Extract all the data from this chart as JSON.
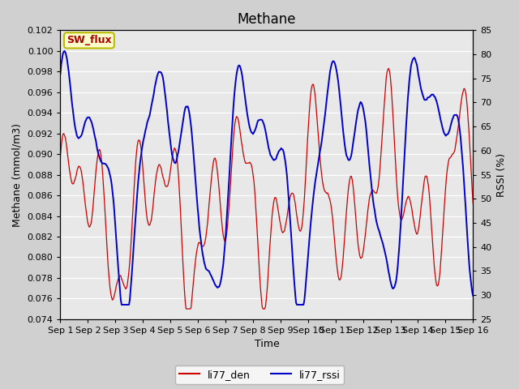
{
  "title": "Methane",
  "xlabel": "Time",
  "ylabel_left": "Methane (mmol/m3)",
  "ylabel_right": "RSSI (%)",
  "ylim_left": [
    0.074,
    0.102
  ],
  "ylim_right": [
    25,
    85
  ],
  "yticks_left": [
    0.074,
    0.076,
    0.078,
    0.08,
    0.082,
    0.084,
    0.086,
    0.088,
    0.09,
    0.092,
    0.094,
    0.096,
    0.098,
    0.1,
    0.102
  ],
  "yticks_right": [
    25,
    30,
    35,
    40,
    45,
    50,
    55,
    60,
    65,
    70,
    75,
    80,
    85
  ],
  "xtick_labels": [
    "Sep 1",
    "Sep 2",
    "Sep 3",
    "Sep 4",
    "Sep 5",
    "Sep 6",
    "Sep 7",
    "Sep 8",
    "Sep 9",
    "Sep 10",
    "Sep 11",
    "Sep 12",
    "Sep 13",
    "Sep 14",
    "Sep 15",
    "Sep 16"
  ],
  "color_red": "#cc0000",
  "color_blue": "#0000cc",
  "legend_label_red": "li77_den",
  "legend_label_blue": "li77_rssi",
  "annotation_text": "SW_flux",
  "annotation_bg": "#ffffcc",
  "annotation_border": "#bbbb00",
  "plot_bg": "#e8e8e8",
  "fig_bg": "#d0d0d0",
  "grid_color": "#ffffff",
  "title_fontsize": 12,
  "axis_fontsize": 9,
  "tick_fontsize": 8,
  "legend_fontsize": 9,
  "n_points": 500,
  "seed": 42
}
